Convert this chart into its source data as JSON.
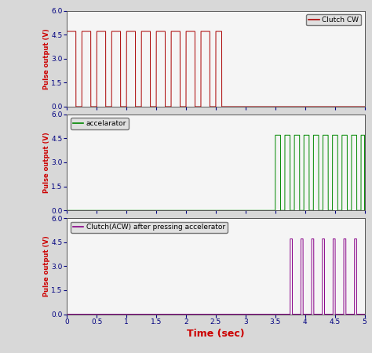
{
  "xlabel": "Time (sec)",
  "ylabel": "Pulse output (V)",
  "xlabel_color": "#cc0000",
  "ylabel_color": "#cc0000",
  "tick_color": "#000080",
  "xlim": [
    0,
    5
  ],
  "ylim": [
    0,
    6
  ],
  "yticks": [
    0,
    1.5,
    3,
    4.5,
    6
  ],
  "xticks": [
    0,
    0.5,
    1,
    1.5,
    2,
    2.5,
    3,
    3.5,
    4,
    4.5,
    5
  ],
  "xtick_labels": [
    "0",
    "0.5",
    "1",
    "1.5",
    "2",
    "2.5",
    "3",
    "3.5",
    "4",
    "4.5",
    "5"
  ],
  "subplot1": {
    "color": "#aa0000",
    "label": "Clutch CW",
    "high": 4.7,
    "low": 0,
    "pulses_start": 0.0,
    "pulses_end": 2.6,
    "pulse_period": 0.25,
    "duty": 0.6,
    "flat_after": 0.0
  },
  "subplot2": {
    "color": "#008800",
    "label": "accelarator",
    "high": 4.7,
    "low": 0,
    "flat_until": 3.5,
    "pulses_start": 3.5,
    "pulses_end": 5.0,
    "pulse_period": 0.16,
    "duty": 0.55
  },
  "subplot3": {
    "color": "#880088",
    "label": "Clutch(ACW) after pressing accelerator",
    "high": 4.7,
    "low": 0,
    "flat_until": 3.75,
    "pulses_start": 3.75,
    "pulses_end": 5.0,
    "pulse_period": 0.18,
    "duty": 0.2
  },
  "fig_bg": "#d8d8d8",
  "plot_bg": "#f5f5f5",
  "spine_color": "#555555",
  "legend_bg": "#e0e0e0"
}
